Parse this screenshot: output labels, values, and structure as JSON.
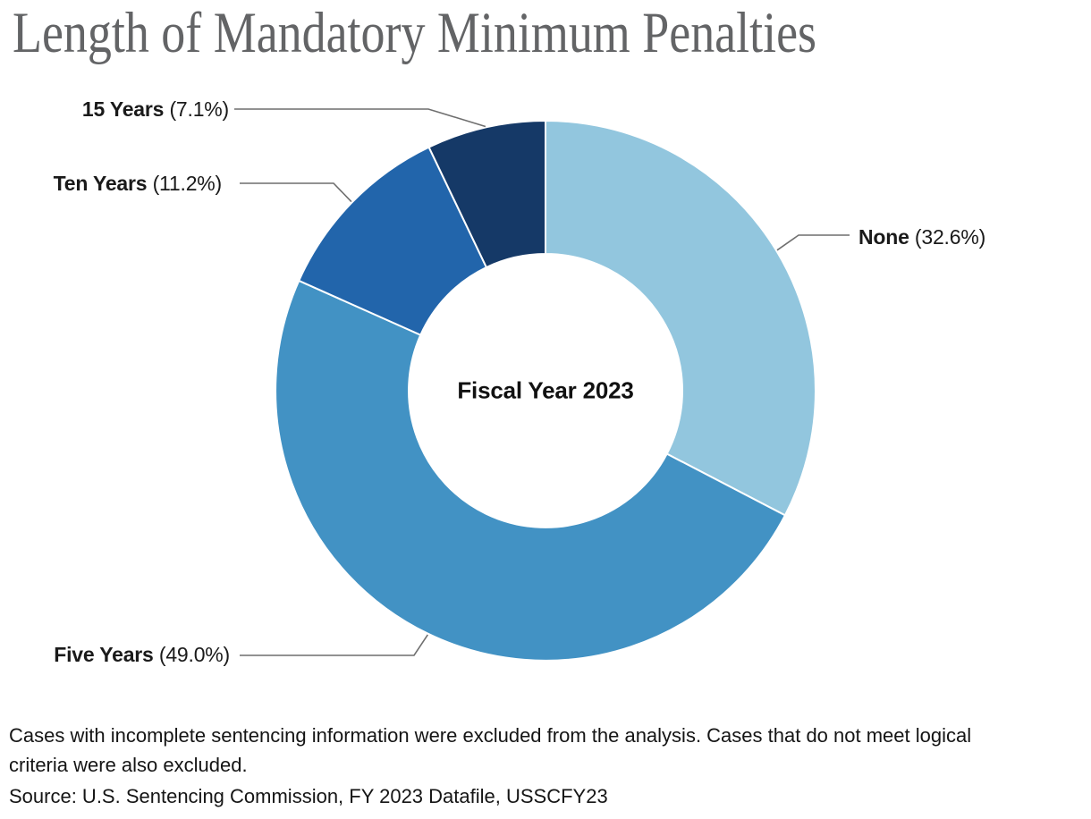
{
  "title": "Length of Mandatory Minimum Penalties",
  "chart_data": {
    "type": "donut",
    "title": "Length of Mandatory Minimum Penalties",
    "center_label": "Fiscal Year 2023",
    "units": "percent",
    "start_angle_deg": 0,
    "direction": "clockwise",
    "segments": [
      {
        "label": "None",
        "value": 32.6,
        "pct_label": "(32.6%)",
        "color": "#92c6de"
      },
      {
        "label": "Five Years",
        "value": 49.0,
        "pct_label": "(49.0%)",
        "color": "#4292c4"
      },
      {
        "label": "Ten Years",
        "value": 11.2,
        "pct_label": "(11.2%)",
        "color": "#2265ab"
      },
      {
        "label": "15 Years",
        "value": 7.1,
        "pct_label": "(7.1%)",
        "color": "#153967"
      }
    ]
  },
  "notes": {
    "line1": "Cases with incomplete sentencing information were excluded from the analysis. Cases that do not meet logical",
    "line2": "criteria were also excluded."
  },
  "source": "Source: U.S. Sentencing Commission, FY 2023 Datafile, USSCFY23",
  "colors": {
    "title_text": "#636466",
    "label_text": "#1a1a1a",
    "leader_line": "#6f6f6f",
    "slice_divider": "#ffffff"
  }
}
